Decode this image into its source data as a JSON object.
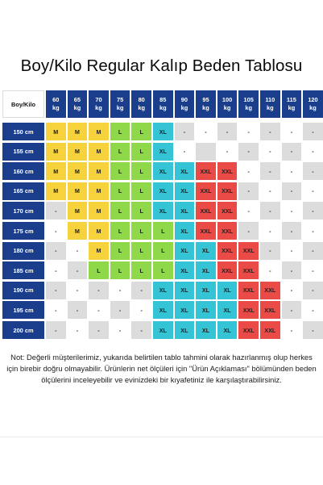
{
  "title": "Boy/Kilo Regular Kalıp Beden Tablosu",
  "corner_label": "Boy/Kilo",
  "weights": [
    {
      "num": "60",
      "unit": "kg"
    },
    {
      "num": "65",
      "unit": "kg"
    },
    {
      "num": "70",
      "unit": "kg"
    },
    {
      "num": "75",
      "unit": "kg"
    },
    {
      "num": "80",
      "unit": "kg"
    },
    {
      "num": "85",
      "unit": "kg"
    },
    {
      "num": "90",
      "unit": "kg"
    },
    {
      "num": "95",
      "unit": "kg"
    },
    {
      "num": "100",
      "unit": "kg"
    },
    {
      "num": "105",
      "unit": "kg"
    },
    {
      "num": "110",
      "unit": "kg"
    },
    {
      "num": "115",
      "unit": "kg"
    },
    {
      "num": "120",
      "unit": "kg"
    }
  ],
  "heights": [
    "150 cm",
    "155 cm",
    "160 cm",
    "165 cm",
    "170 cm",
    "175 cm",
    "180 cm",
    "185 cm",
    "190 cm",
    "195 cm",
    "200 cm"
  ],
  "grid": [
    [
      "M",
      "M",
      "M",
      "L",
      "L",
      "XL",
      "-",
      "-",
      "-",
      "-",
      "-",
      "-",
      "-"
    ],
    [
      "M",
      "M",
      "M",
      "L",
      "L",
      "XL",
      "-",
      "",
      "-",
      "-",
      "-",
      "-",
      "-"
    ],
    [
      "M",
      "M",
      "M",
      "L",
      "L",
      "XL",
      "XL",
      "XXL",
      "XXL",
      "-",
      "-",
      "-",
      "-"
    ],
    [
      "M",
      "M",
      "M",
      "L",
      "L",
      "XL",
      "XL",
      "XXL",
      "XXL",
      "-",
      "-",
      "-",
      "-"
    ],
    [
      "-",
      "M",
      "M",
      "L",
      "L",
      "XL",
      "XL",
      "XXL",
      "XXL",
      "-",
      "-",
      "-",
      "-"
    ],
    [
      "-",
      "M",
      "M",
      "L",
      "L",
      "L",
      "XL",
      "XXL",
      "XXL",
      "-",
      "-",
      "-",
      "-"
    ],
    [
      "-",
      "-",
      "M",
      "L",
      "L",
      "L",
      "XL",
      "XL",
      "XXL",
      "XXL",
      "-",
      "-",
      "-"
    ],
    [
      "-",
      "-",
      "L",
      "L",
      "L",
      "L",
      "XL",
      "XL",
      "XXL",
      "XXL",
      "-",
      "-",
      "-"
    ],
    [
      "-",
      "-",
      "-",
      "-",
      "-",
      "XL",
      "XL",
      "XL",
      "XL",
      "XXL",
      "XXL",
      "-",
      "-"
    ],
    [
      "-",
      "-",
      "-",
      "-",
      "-",
      "XL",
      "XL",
      "XL",
      "XL",
      "XXL",
      "XXL",
      "-",
      "-"
    ],
    [
      "-",
      "-",
      "-",
      "-",
      "-",
      "XL",
      "XL",
      "XL",
      "XL",
      "XXL",
      "XXL",
      "-",
      "-"
    ]
  ],
  "colors": {
    "header": "#1a3e8c",
    "M": "#f6d23c",
    "L": "#8ed84a",
    "XL": "#35c4d6",
    "XXL": "#ea4b47",
    "empty_light": "#dcdcdc",
    "empty_white": "#ffffff"
  },
  "note": "Not: Değerli müşterilerimiz, yukarıda belirtilen tablo tahmini olarak hazırlanmış olup herkes için birebir doğru olmayabilir. Ürünlerin net ölçüleri için \"Ürün Açıklaması\" bölümünden beden ölçülerini inceleyebilir ve evinizdeki bir kıyafetiniz ile karşılaştırabilirsiniz."
}
